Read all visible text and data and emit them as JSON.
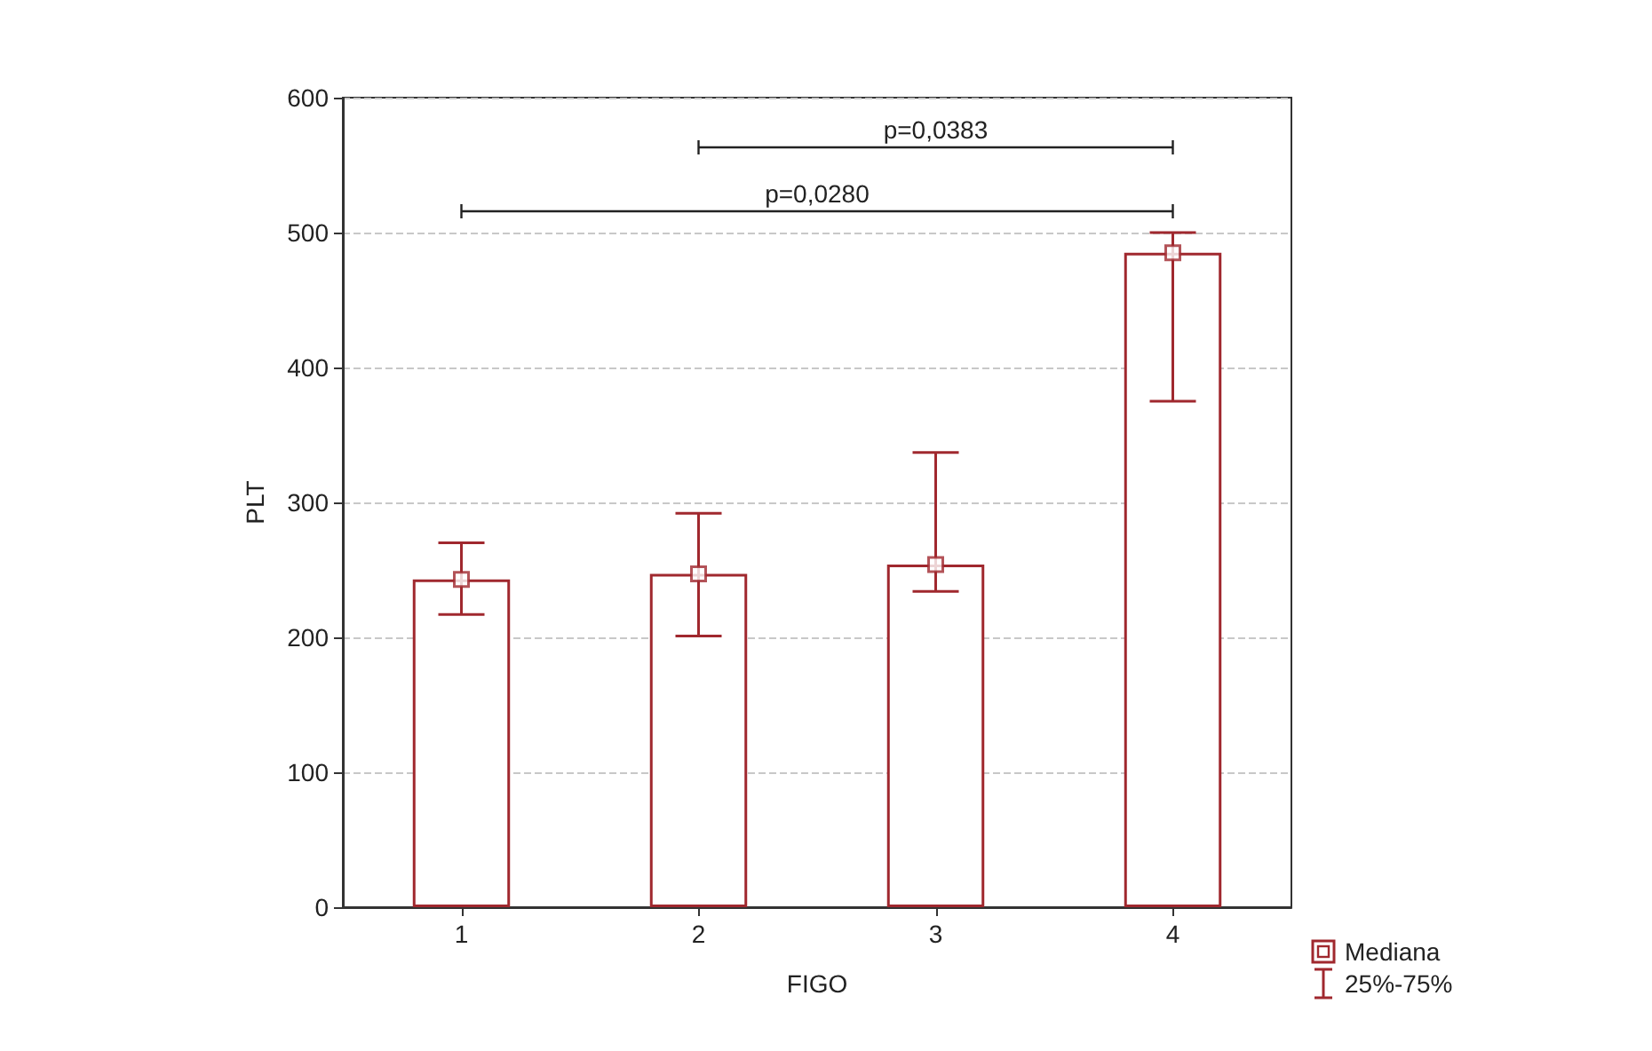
{
  "chart_data": {
    "type": "bar",
    "xlabel": "FIGO",
    "ylabel": "PLT",
    "categories": [
      "1",
      "2",
      "3",
      "4"
    ],
    "series": [
      {
        "type": "scatter",
        "name": "Mediana",
        "color": "#a0282e",
        "marker": "square",
        "x": [
          "1",
          "2",
          "3",
          "4"
        ],
        "values": [
          243,
          247,
          254,
          485
        ]
      },
      {
        "name": "25%-75%",
        "color": "#a0282e",
        "values": [
          243,
          247,
          254,
          485
        ],
        "errors": [
          [
            217,
            270
          ],
          [
            201,
            292
          ],
          [
            234,
            337
          ],
          [
            375,
            500
          ]
        ]
      }
    ],
    "ylim": [
      0,
      600
    ],
    "yticks": [
      0,
      100,
      200,
      300,
      400,
      500,
      600
    ],
    "grid": "y",
    "legend": "bottom right",
    "annotations": [
      "p=0,0383",
      "p=0,0280"
    ]
  }
}
